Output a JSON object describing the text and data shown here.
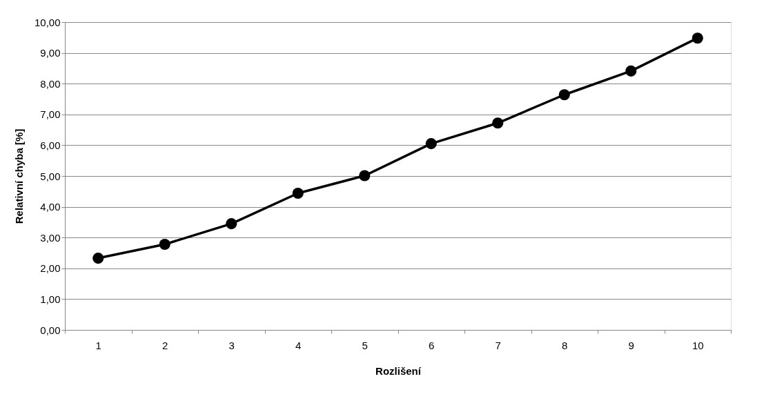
{
  "chart_data": {
    "type": "line",
    "xlabel": "Rozlišení",
    "ylabel": "Relativní chyba [%]",
    "categories": [
      "1",
      "2",
      "3",
      "4",
      "5",
      "6",
      "7",
      "8",
      "9",
      "10"
    ],
    "series": [
      {
        "color": "#000000",
        "values": [
          2.33,
          2.78,
          3.45,
          4.44,
          5.01,
          6.05,
          6.72,
          7.64,
          8.41,
          9.48
        ]
      }
    ],
    "ylim": [
      0,
      10
    ],
    "yticks": [
      {
        "value": 0,
        "label": "0,00"
      },
      {
        "value": 1,
        "label": "1,00"
      },
      {
        "value": 2,
        "label": "2,00"
      },
      {
        "value": 3,
        "label": "3,00"
      },
      {
        "value": 4,
        "label": "4,00"
      },
      {
        "value": 5,
        "label": "5,00"
      },
      {
        "value": 6,
        "label": "6,00"
      },
      {
        "value": 7,
        "label": "7,00"
      },
      {
        "value": 8,
        "label": "8,00"
      },
      {
        "value": 9,
        "label": "9,00"
      },
      {
        "value": 10,
        "label": "10,00"
      }
    ],
    "grid": "y",
    "marker": "circle",
    "line_style": "solid"
  }
}
